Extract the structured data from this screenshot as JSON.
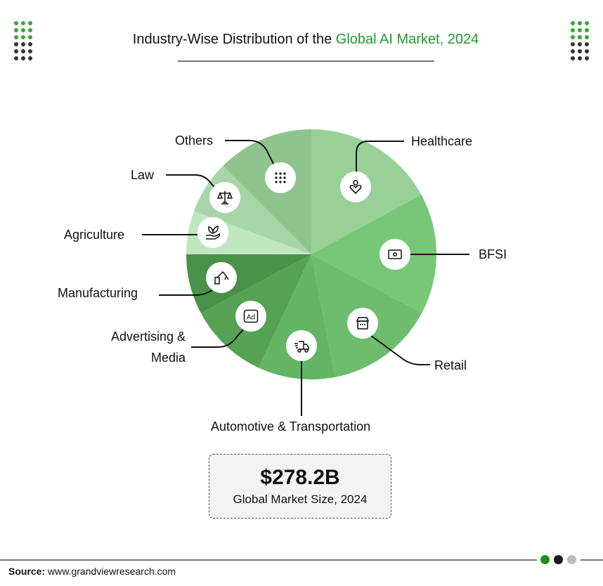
{
  "title": {
    "prefix": "Industry-Wise Distribution of the ",
    "highlight": "Global AI Market, 2024"
  },
  "colors": {
    "accent": "#1f9a2e",
    "dark_dot": "#333333"
  },
  "chart_data": {
    "type": "pie",
    "title": "Industry-Wise Distribution of the Global AI Market, 2024",
    "unit": "approximate share (%) estimated from slice angles",
    "slices": [
      {
        "label": "Healthcare",
        "value": 17.1,
        "color": "#98d098",
        "icon": "person-heart-icon"
      },
      {
        "label": "BFSI",
        "value": 15.7,
        "color": "#77c777",
        "icon": "banknote-icon"
      },
      {
        "label": "Retail",
        "value": 14.2,
        "color": "#6dbd6d",
        "icon": "store-icon"
      },
      {
        "label": "Automotive & Transportation",
        "value": 10.0,
        "color": "#63b563",
        "icon": "truck-icon"
      },
      {
        "label": "Advertising & Media",
        "value": 10.3,
        "color": "#55a255",
        "icon": "ad-icon"
      },
      {
        "label": "Manufacturing",
        "value": 7.8,
        "color": "#4a914a",
        "icon": "robot-arm-icon"
      },
      {
        "label": "Agriculture",
        "value": 5.6,
        "color": "#c0e6c0",
        "icon": "plant-hand-icon"
      },
      {
        "label": "Law",
        "value": 6.9,
        "color": "#a8d6a8",
        "icon": "scales-icon"
      },
      {
        "label": "Others",
        "value": 12.5,
        "color": "#8fc48f",
        "icon": "grid-dots-icon"
      }
    ]
  },
  "labels": {
    "healthcare": "Healthcare",
    "bfsi": "BFSI",
    "retail": "Retail",
    "automotive": "Automotive & Transportation",
    "advertising_1": "Advertising &",
    "advertising_2": "Media",
    "manufacturing": "Manufacturing",
    "agriculture": "Agriculture",
    "law": "Law",
    "others": "Others"
  },
  "market_box": {
    "value": "$278.2B",
    "caption": "Global Market Size, 2024"
  },
  "footer": {
    "source_label": "Source:",
    "source_url": "www.grandviewresearch.com"
  }
}
